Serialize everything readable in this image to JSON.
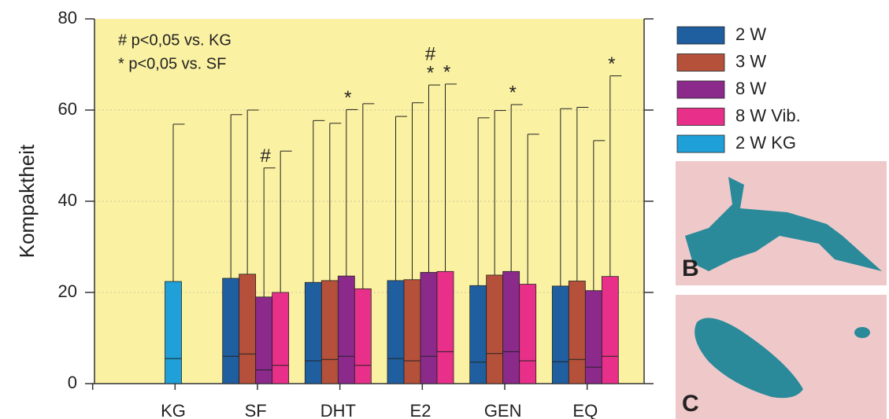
{
  "chart_data": {
    "type": "bar",
    "y_label": "Kompaktheit",
    "notes": [
      "# p<0,05 vs. KG",
      "* p<0,05 vs. SF"
    ],
    "categories": [
      "KG",
      "SF",
      "DHT",
      "E2",
      "GEN",
      "EQ"
    ],
    "ylim": [
      0,
      80
    ],
    "yticks": [
      0,
      20,
      40,
      60,
      80
    ],
    "grid": true,
    "series": [
      {
        "name": "2 W",
        "color": "#1f5fa0",
        "values": [
          null,
          23.1,
          22.2,
          22.6,
          21.5,
          21.4
        ],
        "inner": [
          null,
          6,
          5,
          5.5,
          4.7,
          4.8
        ],
        "whisker": [
          null,
          59,
          57.7,
          58.6,
          58.3,
          60.3
        ],
        "markers": [
          null,
          null,
          null,
          null,
          null,
          null
        ]
      },
      {
        "name": "3 W",
        "color": "#b5503a",
        "values": [
          null,
          24,
          22.6,
          22.8,
          23.8,
          22.5
        ],
        "inner": [
          null,
          6.5,
          5.3,
          5,
          6.6,
          5.3
        ],
        "whisker": [
          null,
          60,
          57.1,
          61.6,
          59.9,
          60.6
        ],
        "markers": [
          null,
          null,
          null,
          null,
          null,
          null
        ]
      },
      {
        "name": "8 W",
        "color": "#8b2a8b",
        "values": [
          null,
          19,
          23.6,
          24.4,
          24.6,
          20.4
        ],
        "inner": [
          null,
          3,
          6,
          6,
          7,
          3.6
        ],
        "whisker": [
          null,
          47.3,
          60.1,
          65.5,
          61.2,
          53.3
        ],
        "markers": [
          null,
          [
            "#"
          ],
          [
            "*"
          ],
          [
            "#",
            "*"
          ],
          [
            "*"
          ],
          null
        ]
      },
      {
        "name": "8 W Vib.",
        "color": "#e8308a",
        "values": [
          null,
          20,
          20.8,
          24.6,
          21.8,
          23.5
        ],
        "inner": [
          null,
          4,
          4,
          7,
          5,
          6
        ],
        "whisker": [
          null,
          51,
          61.4,
          65.7,
          54.7,
          67.5
        ],
        "markers": [
          null,
          null,
          null,
          [
            "*"
          ],
          null,
          [
            "*"
          ]
        ]
      },
      {
        "name": "2 W KG",
        "color": "#1fa0d8",
        "values": [
          22.4,
          null,
          null,
          null,
          null,
          null
        ],
        "inner": [
          5.5,
          null,
          null,
          null,
          null,
          null
        ],
        "whisker": [
          56.9,
          null,
          null,
          null,
          null,
          null
        ],
        "markers": [
          null,
          null,
          null,
          null,
          null,
          null
        ]
      }
    ],
    "panels": [
      "B",
      "C"
    ]
  }
}
